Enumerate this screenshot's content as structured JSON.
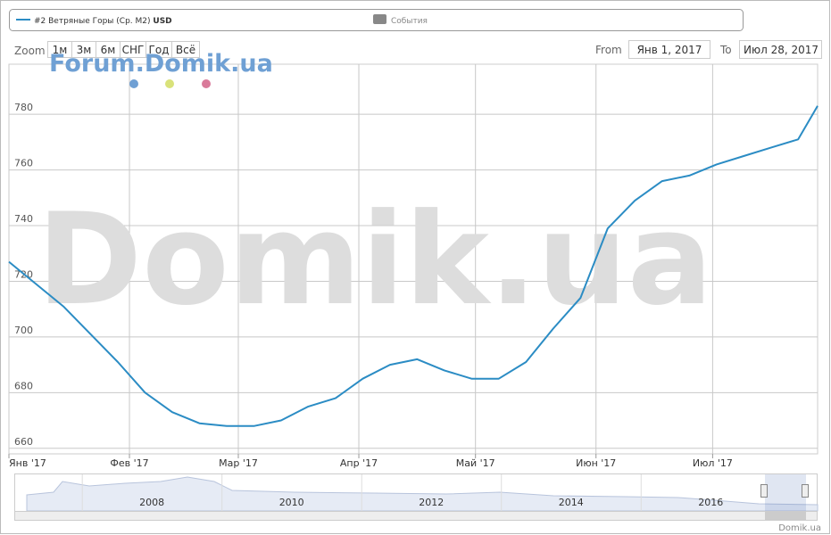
{
  "chart_data": {
    "type": "line",
    "series": [
      {
        "name": "#2 Ветряные Горы (Ср. М2)",
        "unit": "USD",
        "color": "#2b8cc4",
        "x": [
          "2017-01-01",
          "2017-01-08",
          "2017-01-15",
          "2017-01-22",
          "2017-01-29",
          "2017-02-05",
          "2017-02-12",
          "2017-02-19",
          "2017-02-26",
          "2017-03-05",
          "2017-03-12",
          "2017-03-19",
          "2017-03-26",
          "2017-04-02",
          "2017-04-09",
          "2017-04-16",
          "2017-04-23",
          "2017-04-30",
          "2017-05-07",
          "2017-05-14",
          "2017-05-21",
          "2017-05-28",
          "2017-06-04",
          "2017-06-11",
          "2017-06-18",
          "2017-06-25",
          "2017-07-02",
          "2017-07-09",
          "2017-07-16",
          "2017-07-23",
          "2017-07-28"
        ],
        "values": [
          727,
          719,
          711,
          701,
          691,
          680,
          673,
          669,
          668,
          668,
          670,
          675,
          678,
          685,
          690,
          692,
          688,
          685,
          685,
          691,
          703,
          714,
          739,
          749,
          756,
          758,
          762,
          765,
          768,
          771,
          783
        ]
      }
    ],
    "events_legend": "События",
    "zoom_label": "Zoom",
    "zoom_buttons": [
      "1м",
      "3м",
      "6м",
      "СНГ",
      "Год",
      "Всё"
    ],
    "from_label": "From",
    "from_value": "Янв 1, 2017",
    "to_label": "To",
    "to_value": "Июл 28, 2017",
    "watermark": "Domik.ua",
    "watermark_small": "Forum.Domik.ua",
    "credit": "Domik.ua",
    "xlim": [
      "2017-01-01",
      "2017-07-28"
    ],
    "xticks": [
      {
        "value": "2017-01-01",
        "label": "Янв '17"
      },
      {
        "value": "2017-02-01",
        "label": "Фев '17"
      },
      {
        "value": "2017-03-01",
        "label": "Мар '17"
      },
      {
        "value": "2017-04-01",
        "label": "Апр '17"
      },
      {
        "value": "2017-05-01",
        "label": "Май '17"
      },
      {
        "value": "2017-06-01",
        "label": "Июн '17"
      },
      {
        "value": "2017-07-01",
        "label": "Июл '17"
      }
    ],
    "ylim": [
      658,
      798
    ],
    "yticks": [
      660,
      680,
      700,
      720,
      740,
      760,
      780
    ],
    "grid": true,
    "navigator": {
      "xlim": [
        2006.03,
        2017.53
      ],
      "xticks": [
        2008,
        2010,
        2012,
        2014,
        2016
      ]
    }
  }
}
